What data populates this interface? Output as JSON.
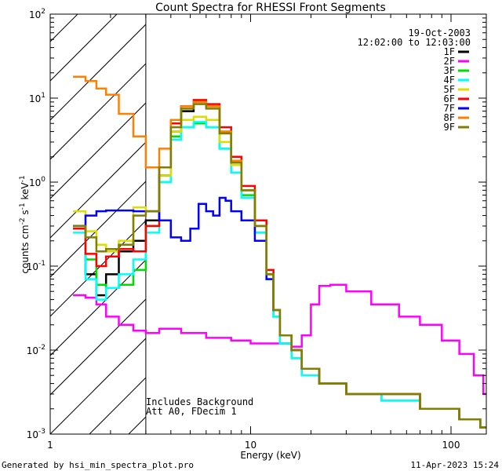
{
  "chart_data": {
    "type": "line",
    "title": "Count Spectra for RHESSI Front Segments",
    "xlabel": "Energy (keV)",
    "ylabel": "counts cm^-2 s^-1 keV^-1",
    "ylabel_base": "counts cm",
    "ylabel_exp1": "-2",
    "ylabel_mid": " s",
    "ylabel_exp2": "-1",
    "ylabel_end": " keV",
    "ylabel_exp3": "-1",
    "xscale": "log",
    "yscale": "log",
    "xlim": [
      1,
      150
    ],
    "ylim": [
      0.001,
      100
    ],
    "x_ticks": [
      {
        "value": 1,
        "label": "1"
      },
      {
        "value": 10,
        "label": "10"
      },
      {
        "value": 100,
        "label": "100"
      }
    ],
    "y_ticks": [
      {
        "value": 0.001,
        "base": "10",
        "exp": "-3"
      },
      {
        "value": 0.01,
        "base": "10",
        "exp": "-2"
      },
      {
        "value": 0.1,
        "base": "10",
        "exp": "-1"
      },
      {
        "value": 1,
        "base": "10",
        "exp": "0"
      },
      {
        "value": 10,
        "base": "10",
        "exp": "1"
      },
      {
        "value": 100,
        "base": "10",
        "exp": "2"
      }
    ],
    "date": "19-Oct-2003",
    "time_range": "12:02:00 to 12:03:00",
    "shaded_region": {
      "x_from": 1,
      "x_to": 3
    },
    "annotations": [
      "Includes Background",
      "Att A0, FDecim 1"
    ],
    "footer_left": "Generated by hsi_min_spectra_plot.pro",
    "footer_right": "11-Apr-2023 15:24",
    "series": [
      {
        "name": "1F",
        "color": "#000000",
        "points": [
          [
            1.3,
            0.3
          ],
          [
            1.5,
            0.08
          ],
          [
            1.7,
            0.045
          ],
          [
            1.9,
            0.08
          ],
          [
            2.2,
            0.15
          ],
          [
            2.6,
            0.2
          ],
          [
            3.0,
            0.35
          ],
          [
            3.5,
            1.2
          ],
          [
            4.0,
            4
          ],
          [
            4.5,
            7
          ],
          [
            5.2,
            9
          ],
          [
            6.0,
            8
          ],
          [
            7.0,
            4
          ],
          [
            8.0,
            1.8
          ],
          [
            9.0,
            0.8
          ],
          [
            10.5,
            0.3
          ],
          [
            12,
            0.08
          ],
          [
            13,
            0.03
          ],
          [
            14,
            0.015
          ],
          [
            16,
            0.01
          ],
          [
            18,
            0.006
          ],
          [
            22,
            0.004
          ],
          [
            30,
            0.003
          ],
          [
            45,
            0.003
          ],
          [
            70,
            0.002
          ],
          [
            110,
            0.0015
          ],
          [
            140,
            0.0012
          ]
        ]
      },
      {
        "name": "2F",
        "color": "#ff00ff",
        "points": [
          [
            1.3,
            0.045
          ],
          [
            1.5,
            0.042
          ],
          [
            1.7,
            0.035
          ],
          [
            1.9,
            0.025
          ],
          [
            2.2,
            0.02
          ],
          [
            2.6,
            0.017
          ],
          [
            3.0,
            0.016
          ],
          [
            3.5,
            0.018
          ],
          [
            4.5,
            0.016
          ],
          [
            6,
            0.014
          ],
          [
            8,
            0.013
          ],
          [
            10,
            0.012
          ],
          [
            13,
            0.012
          ],
          [
            16,
            0.011
          ],
          [
            18,
            0.015
          ],
          [
            20,
            0.035
          ],
          [
            22,
            0.058
          ],
          [
            25,
            0.06
          ],
          [
            30,
            0.05
          ],
          [
            40,
            0.035
          ],
          [
            55,
            0.025
          ],
          [
            70,
            0.02
          ],
          [
            90,
            0.013
          ],
          [
            110,
            0.009
          ],
          [
            130,
            0.005
          ],
          [
            145,
            0.003
          ]
        ]
      },
      {
        "name": "3F",
        "color": "#00dd00",
        "points": [
          [
            1.3,
            0.28
          ],
          [
            1.5,
            0.12
          ],
          [
            1.7,
            0.06
          ],
          [
            1.9,
            0.055
          ],
          [
            2.2,
            0.06
          ],
          [
            2.6,
            0.09
          ],
          [
            3.0,
            0.3
          ],
          [
            3.5,
            1.0
          ],
          [
            4.0,
            3.5
          ],
          [
            4.5,
            4.5
          ],
          [
            5.2,
            5
          ],
          [
            6.0,
            4.5
          ],
          [
            7.0,
            2.5
          ],
          [
            8.0,
            1.3
          ],
          [
            9.0,
            0.7
          ],
          [
            10.5,
            0.25
          ],
          [
            12,
            0.07
          ],
          [
            13,
            0.025
          ],
          [
            14,
            0.012
          ],
          [
            16,
            0.008
          ],
          [
            18,
            0.005
          ],
          [
            22,
            0.004
          ],
          [
            30,
            0.003
          ],
          [
            45,
            0.0025
          ],
          [
            70,
            0.002
          ],
          [
            110,
            0.0015
          ],
          [
            140,
            0.0012
          ]
        ]
      },
      {
        "name": "4F",
        "color": "#00ffff",
        "points": [
          [
            1.3,
            0.25
          ],
          [
            1.5,
            0.07
          ],
          [
            1.7,
            0.04
          ],
          [
            1.9,
            0.055
          ],
          [
            2.2,
            0.08
          ],
          [
            2.6,
            0.12
          ],
          [
            3.0,
            0.25
          ],
          [
            3.5,
            1.0
          ],
          [
            4.0,
            3.2
          ],
          [
            4.5,
            4.5
          ],
          [
            5.2,
            5.2
          ],
          [
            6.0,
            4.5
          ],
          [
            7.0,
            2.5
          ],
          [
            8.0,
            1.3
          ],
          [
            9.0,
            0.65
          ],
          [
            10.5,
            0.25
          ],
          [
            12,
            0.07
          ],
          [
            13,
            0.025
          ],
          [
            14,
            0.012
          ],
          [
            16,
            0.008
          ],
          [
            18,
            0.005
          ],
          [
            22,
            0.004
          ],
          [
            30,
            0.003
          ],
          [
            45,
            0.0025
          ],
          [
            70,
            0.002
          ],
          [
            110,
            0.0015
          ],
          [
            140,
            0.0012
          ]
        ]
      },
      {
        "name": "5F",
        "color": "#dddd00",
        "points": [
          [
            1.3,
            0.45
          ],
          [
            1.5,
            0.26
          ],
          [
            1.7,
            0.18
          ],
          [
            1.9,
            0.15
          ],
          [
            2.2,
            0.2
          ],
          [
            2.6,
            0.5
          ],
          [
            3.0,
            0.45
          ],
          [
            3.5,
            1.2
          ],
          [
            4.0,
            4
          ],
          [
            4.5,
            5.5
          ],
          [
            5.2,
            6
          ],
          [
            6.0,
            5.5
          ],
          [
            7.0,
            3
          ],
          [
            8.0,
            1.6
          ],
          [
            9.0,
            0.8
          ],
          [
            10.5,
            0.3
          ],
          [
            12,
            0.08
          ],
          [
            13,
            0.03
          ],
          [
            14,
            0.015
          ],
          [
            16,
            0.01
          ],
          [
            18,
            0.006
          ],
          [
            22,
            0.004
          ],
          [
            30,
            0.003
          ],
          [
            45,
            0.003
          ],
          [
            70,
            0.002
          ],
          [
            110,
            0.0015
          ],
          [
            140,
            0.0012
          ]
        ]
      },
      {
        "name": "6F",
        "color": "#ff0000",
        "points": [
          [
            1.3,
            0.28
          ],
          [
            1.5,
            0.14
          ],
          [
            1.7,
            0.1
          ],
          [
            1.9,
            0.13
          ],
          [
            2.2,
            0.16
          ],
          [
            2.6,
            0.15
          ],
          [
            3.0,
            0.3
          ],
          [
            3.5,
            1.5
          ],
          [
            4.0,
            5
          ],
          [
            4.5,
            8
          ],
          [
            5.2,
            9.5
          ],
          [
            6.0,
            8.5
          ],
          [
            7.0,
            4.5
          ],
          [
            8.0,
            2
          ],
          [
            9.0,
            0.9
          ],
          [
            10.5,
            0.35
          ],
          [
            12,
            0.09
          ],
          [
            13,
            0.03
          ],
          [
            14,
            0.015
          ],
          [
            16,
            0.01
          ],
          [
            18,
            0.006
          ],
          [
            22,
            0.004
          ],
          [
            30,
            0.003
          ],
          [
            45,
            0.003
          ],
          [
            70,
            0.002
          ],
          [
            110,
            0.0015
          ],
          [
            140,
            0.0012
          ]
        ]
      },
      {
        "name": "7F",
        "color": "#0000ff",
        "points": [
          [
            1.3,
            0.3
          ],
          [
            1.5,
            0.4
          ],
          [
            1.7,
            0.45
          ],
          [
            1.9,
            0.46
          ],
          [
            2.2,
            0.46
          ],
          [
            2.6,
            0.45
          ],
          [
            3.0,
            0.45
          ],
          [
            3.5,
            0.35
          ],
          [
            4.0,
            0.22
          ],
          [
            4.5,
            0.2
          ],
          [
            5.0,
            0.28
          ],
          [
            5.5,
            0.55
          ],
          [
            6.0,
            0.45
          ],
          [
            6.5,
            0.4
          ],
          [
            7.0,
            0.65
          ],
          [
            7.5,
            0.6
          ],
          [
            8.0,
            0.45
          ],
          [
            9.0,
            0.35
          ],
          [
            10.5,
            0.2
          ],
          [
            12,
            0.07
          ],
          [
            13,
            0.03
          ],
          [
            14,
            0.015
          ],
          [
            16,
            0.01
          ],
          [
            18,
            0.006
          ],
          [
            22,
            0.004
          ],
          [
            30,
            0.003
          ],
          [
            45,
            0.003
          ],
          [
            70,
            0.002
          ],
          [
            110,
            0.0015
          ],
          [
            140,
            0.0012
          ]
        ]
      },
      {
        "name": "8F",
        "color": "#ff8000",
        "points": [
          [
            1.3,
            18
          ],
          [
            1.5,
            16
          ],
          [
            1.7,
            13
          ],
          [
            1.9,
            11
          ],
          [
            2.2,
            6.5
          ],
          [
            2.6,
            3.5
          ],
          [
            3.0,
            1.5
          ],
          [
            3.5,
            2.5
          ],
          [
            4.0,
            5.5
          ],
          [
            4.5,
            8
          ],
          [
            5.2,
            9
          ],
          [
            6.0,
            8
          ],
          [
            7.0,
            4
          ],
          [
            8.0,
            1.8
          ],
          [
            9.0,
            0.8
          ],
          [
            10.5,
            0.3
          ],
          [
            12,
            0.08
          ],
          [
            13,
            0.03
          ],
          [
            14,
            0.015
          ],
          [
            16,
            0.01
          ],
          [
            18,
            0.006
          ],
          [
            22,
            0.004
          ],
          [
            30,
            0.003
          ],
          [
            45,
            0.003
          ],
          [
            70,
            0.002
          ],
          [
            110,
            0.0015
          ],
          [
            140,
            0.0012
          ]
        ]
      },
      {
        "name": "9F",
        "color": "#808000",
        "points": [
          [
            1.3,
            0.3
          ],
          [
            1.5,
            0.22
          ],
          [
            1.7,
            0.15
          ],
          [
            1.9,
            0.16
          ],
          [
            2.2,
            0.18
          ],
          [
            2.6,
            0.4
          ],
          [
            3.0,
            0.45
          ],
          [
            3.5,
            1.5
          ],
          [
            4.0,
            4.5
          ],
          [
            4.5,
            7.5
          ],
          [
            5.2,
            8.5
          ],
          [
            6.0,
            7.5
          ],
          [
            7.0,
            3.8
          ],
          [
            8.0,
            1.7
          ],
          [
            9.0,
            0.8
          ],
          [
            10.5,
            0.3
          ],
          [
            12,
            0.08
          ],
          [
            13,
            0.03
          ],
          [
            14,
            0.015
          ],
          [
            16,
            0.01
          ],
          [
            18,
            0.006
          ],
          [
            22,
            0.004
          ],
          [
            30,
            0.003
          ],
          [
            45,
            0.003
          ],
          [
            70,
            0.002
          ],
          [
            110,
            0.0015
          ],
          [
            140,
            0.0012
          ]
        ]
      }
    ]
  }
}
